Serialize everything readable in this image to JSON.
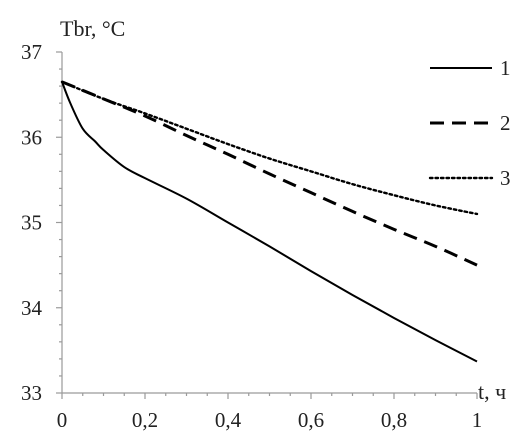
{
  "chart_data": {
    "type": "line",
    "title": "",
    "xlabel": "t, ч",
    "ylabel": "Tbr, °C",
    "xlim": [
      0,
      1
    ],
    "ylim": [
      33,
      37
    ],
    "xticks": [
      0,
      0.2,
      0.4,
      0.6,
      0.8,
      1
    ],
    "xtick_labels": [
      "0",
      "0,2",
      "0,4",
      "0,6",
      "0,8",
      "1"
    ],
    "yticks": [
      33,
      34,
      35,
      36,
      37
    ],
    "ytick_labels": [
      "33",
      "34",
      "35",
      "36",
      "37"
    ],
    "grid": false,
    "legend_position": "top-right",
    "series": [
      {
        "name": "1",
        "style": "solid",
        "color": "#000000",
        "x": [
          0,
          0.02,
          0.05,
          0.08,
          0.1,
          0.15,
          0.2,
          0.3,
          0.4,
          0.5,
          0.6,
          0.7,
          0.8,
          0.9,
          1.0
        ],
        "y": [
          36.65,
          36.4,
          36.1,
          35.95,
          35.85,
          35.65,
          35.52,
          35.28,
          35.0,
          34.72,
          34.43,
          34.15,
          33.88,
          33.62,
          33.37
        ]
      },
      {
        "name": "2",
        "style": "dashed",
        "color": "#000000",
        "x": [
          0,
          0.1,
          0.2,
          0.3,
          0.4,
          0.5,
          0.6,
          0.7,
          0.8,
          0.9,
          1.0
        ],
        "y": [
          36.65,
          36.45,
          36.25,
          36.02,
          35.8,
          35.57,
          35.35,
          35.13,
          34.92,
          34.72,
          34.5
        ]
      },
      {
        "name": "3",
        "style": "dotted",
        "color": "#000000",
        "x": [
          0,
          0.1,
          0.2,
          0.3,
          0.4,
          0.5,
          0.6,
          0.7,
          0.8,
          0.9,
          1.0
        ],
        "y": [
          36.65,
          36.45,
          36.28,
          36.1,
          35.92,
          35.75,
          35.6,
          35.45,
          35.32,
          35.2,
          35.1
        ]
      }
    ]
  }
}
